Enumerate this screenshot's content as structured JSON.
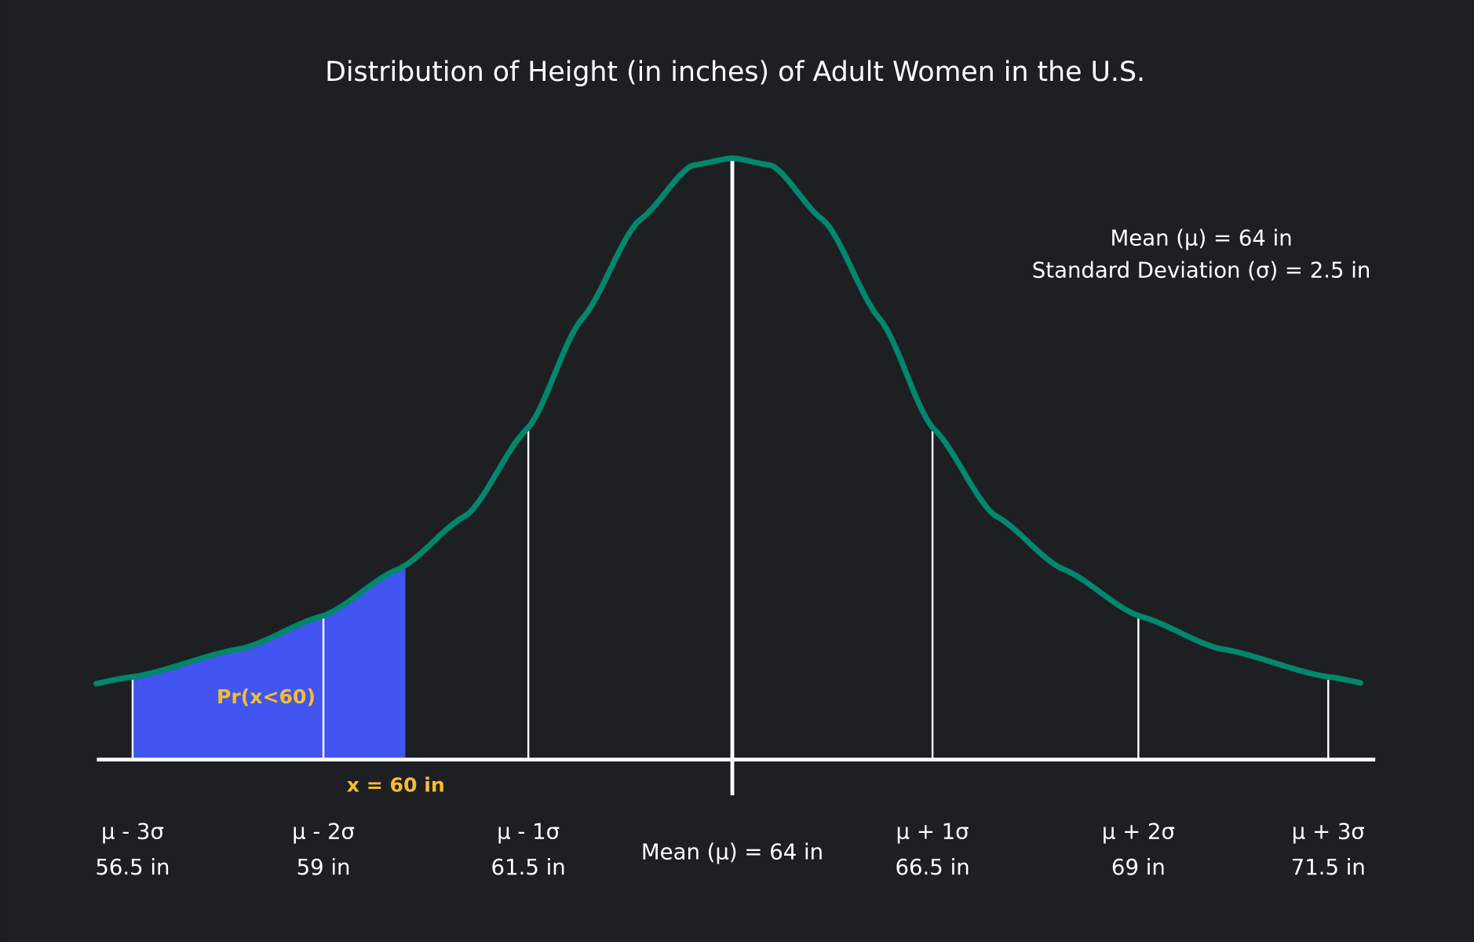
{
  "chart_data": {
    "type": "area",
    "title": "Distribution of Height (in inches) of Adult Women in the U.S.",
    "stats": {
      "mean_label": "Mean (μ) = 64 in",
      "sd_label": "Standard Deviation (σ) = 2.5 in",
      "mean": 64,
      "sd": 2.5
    },
    "ticks": [
      {
        "value": 56.5,
        "symbol": "μ - 3σ",
        "label": "56.5 in"
      },
      {
        "value": 59,
        "symbol": "μ - 2σ",
        "label": "59 in"
      },
      {
        "value": 61.5,
        "symbol": "μ - 1σ",
        "label": "61.5 in"
      },
      {
        "value": 64,
        "symbol": "",
        "label": "Mean (μ) = 64 in"
      },
      {
        "value": 66.5,
        "symbol": "μ + 1σ",
        "label": "66.5 in"
      },
      {
        "value": 69,
        "symbol": "μ + 2σ",
        "label": "69 in"
      },
      {
        "value": 71.5,
        "symbol": "μ + 3σ",
        "label": "71.5 in"
      }
    ],
    "shaded_region": {
      "from": 56.5,
      "to": 60,
      "label": "Pr(x<60)",
      "marker_label": "x = 60 in"
    },
    "colors": {
      "background": "#1e1f23",
      "curve": "#00876c",
      "shaded": "#4355f0",
      "highlight": "#f5bd2e",
      "axis": "#ffffff"
    },
    "grid": false,
    "legend": "none"
  }
}
